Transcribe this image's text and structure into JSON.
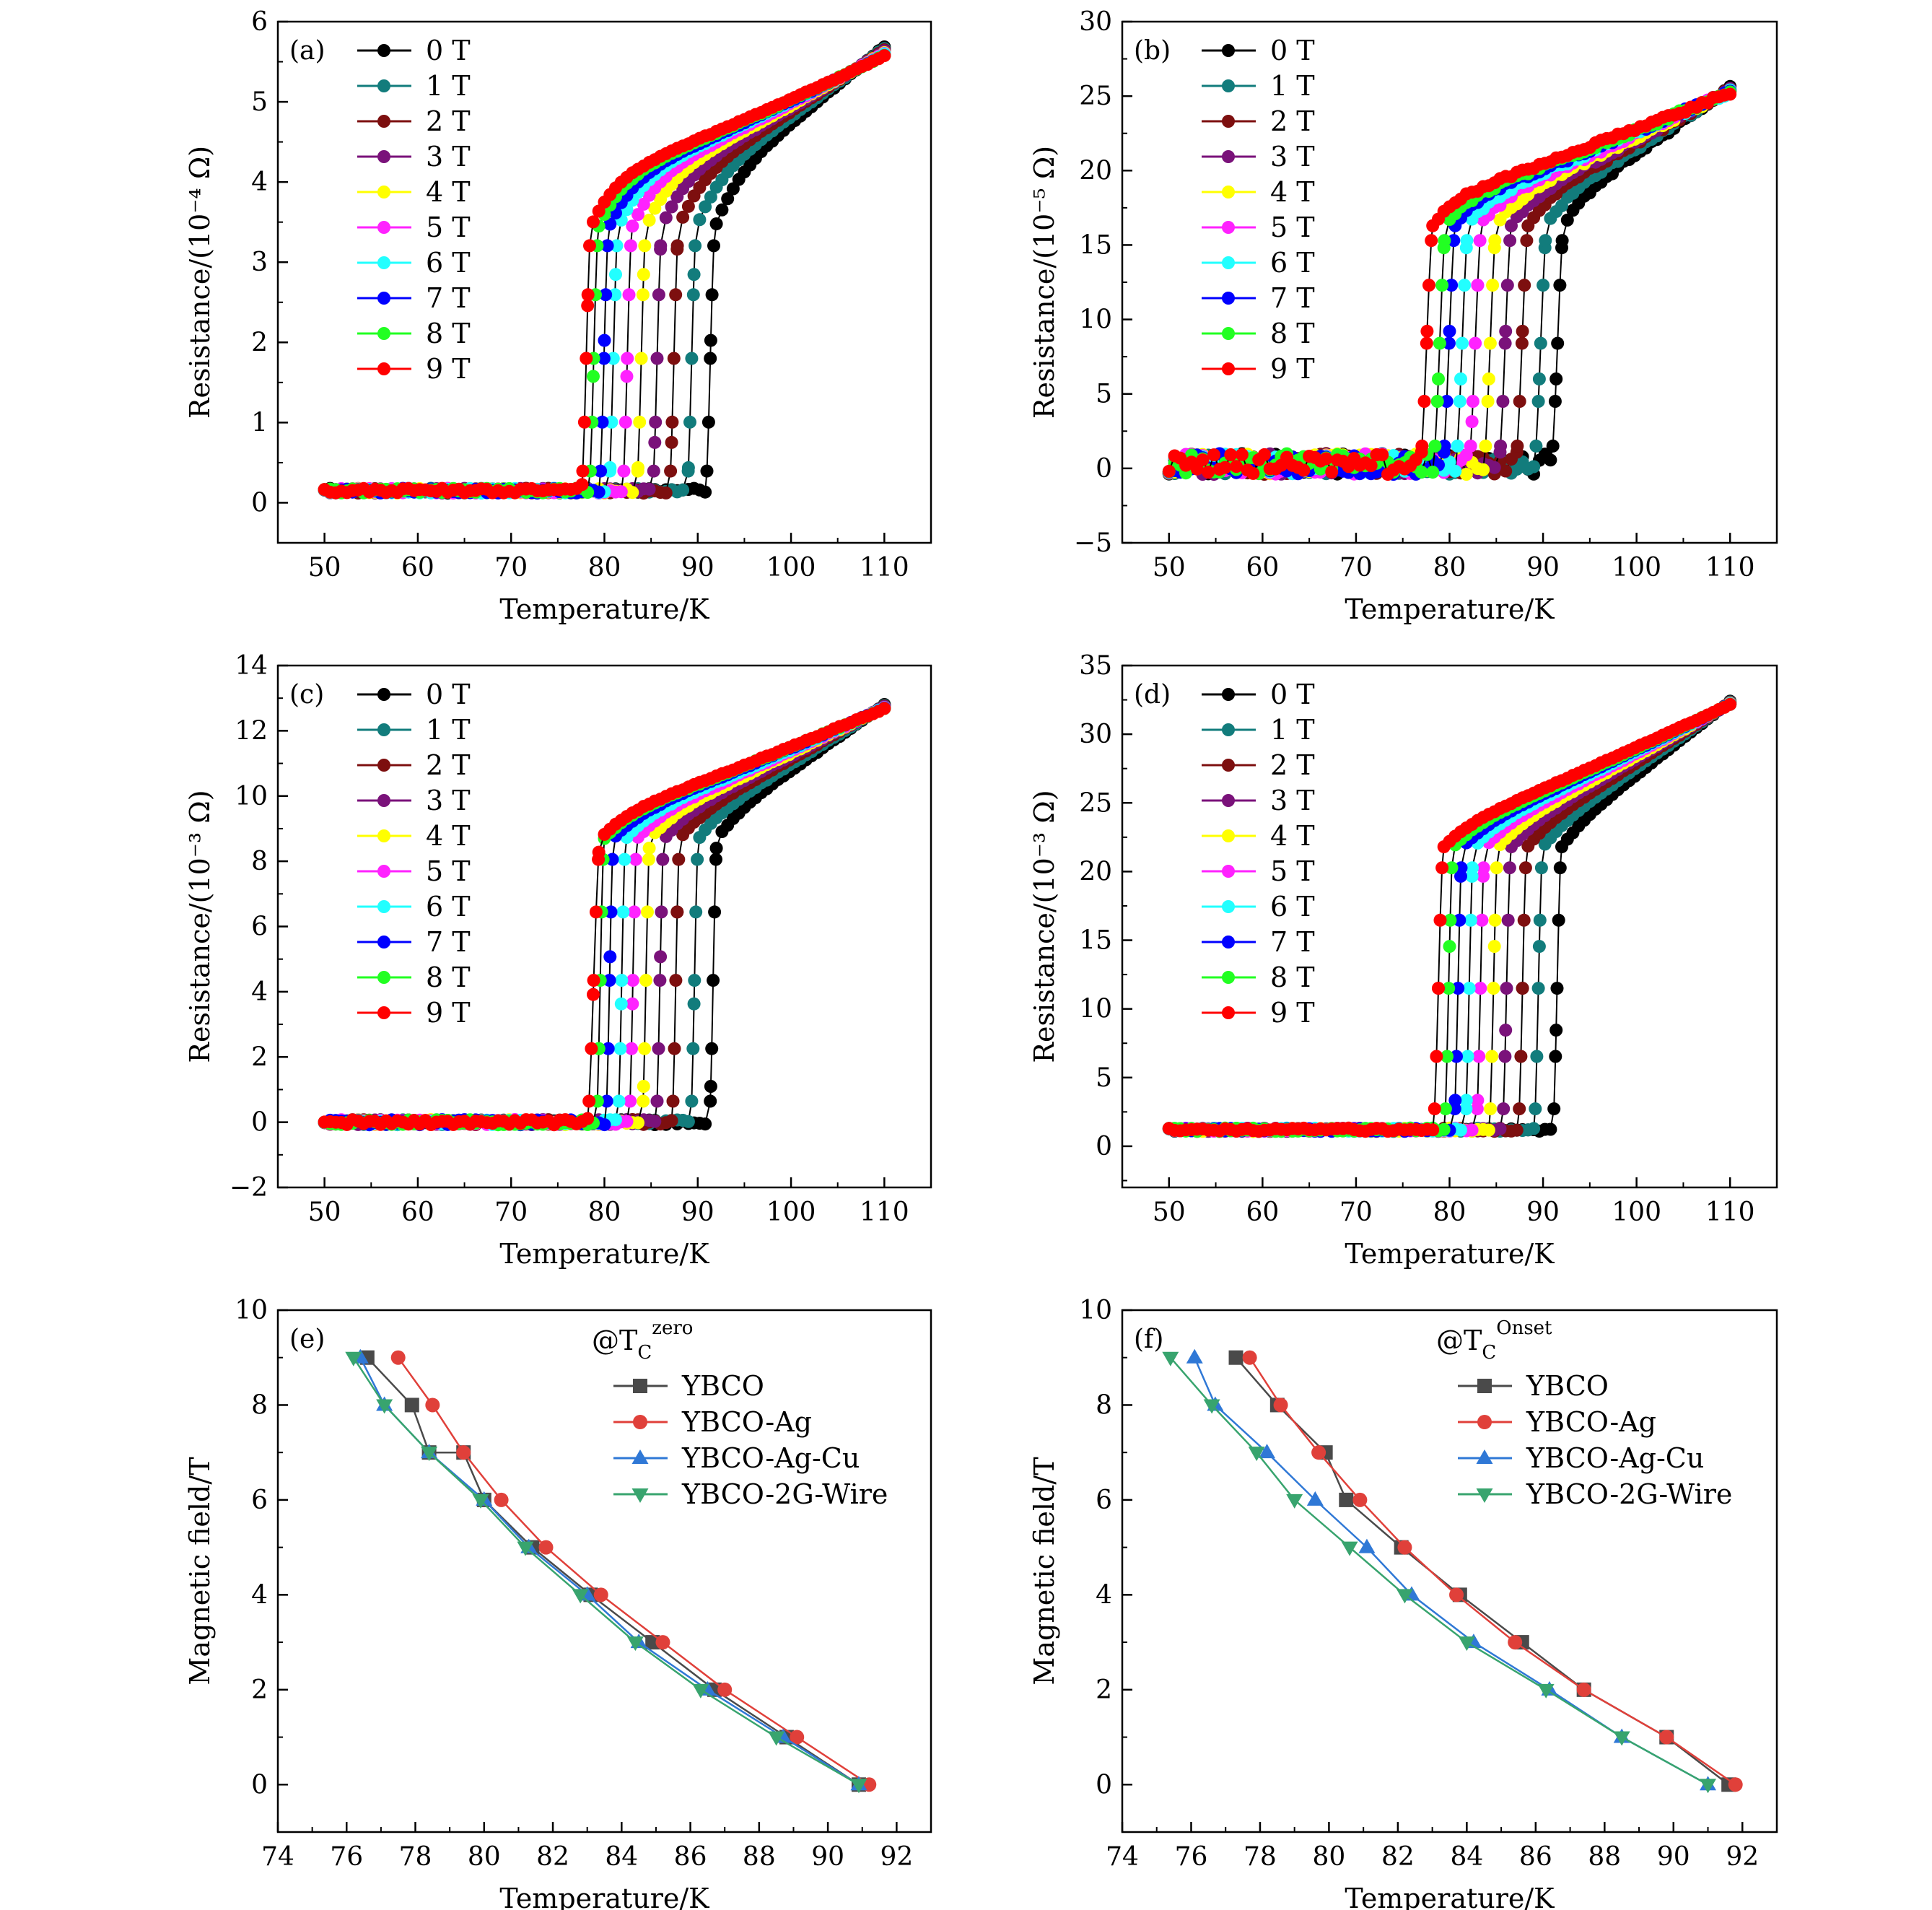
{
  "chart_data": [
    {
      "panel": "(a)",
      "type": "line",
      "xlabel": "Temperature/K",
      "ylabel": "Resistance/(10⁻⁴ Ω)",
      "xlim": [
        45,
        115
      ],
      "ylim": [
        -0.5,
        6
      ],
      "xticks": [
        50,
        60,
        70,
        80,
        90,
        100,
        110
      ],
      "yticks": [
        0,
        1,
        2,
        3,
        4,
        5,
        6
      ],
      "legend": "top-left",
      "grid": false,
      "model": {
        "T_min": 50,
        "T_max": 110,
        "step": 0.6,
        "base": 0.15,
        "noise": 0.03,
        "R_onset": 3.45,
        "R_end": 5.4,
        "bend": 0.6,
        "width": 0.5
      },
      "series": [
        {
          "name": "0 T",
          "color": "#000000",
          "Tc_zero": 90.8,
          "Tc_onset": 91.9
        },
        {
          "name": "1 T",
          "color": "#127c7c",
          "Tc_zero": 88.8,
          "Tc_onset": 89.9
        },
        {
          "name": "2 T",
          "color": "#7d0f0f",
          "Tc_zero": 86.9,
          "Tc_onset": 88.0
        },
        {
          "name": "3 T",
          "color": "#7a127a",
          "Tc_zero": 85.1,
          "Tc_onset": 86.2
        },
        {
          "name": "4 T",
          "color": "#ffff00",
          "Tc_zero": 83.4,
          "Tc_onset": 84.5
        },
        {
          "name": "5 T",
          "color": "#ff22ff",
          "Tc_zero": 81.9,
          "Tc_onset": 83.0
        },
        {
          "name": "6 T",
          "color": "#22ffff",
          "Tc_zero": 80.4,
          "Tc_onset": 81.5
        },
        {
          "name": "7 T",
          "color": "#0000ff",
          "Tc_zero": 79.4,
          "Tc_onset": 80.5
        },
        {
          "name": "8 T",
          "color": "#22ff22",
          "Tc_zero": 78.3,
          "Tc_onset": 79.4
        },
        {
          "name": "9 T",
          "color": "#ff0000",
          "Tc_zero": 77.5,
          "Tc_onset": 78.6
        }
      ]
    },
    {
      "panel": "(b)",
      "type": "line",
      "xlabel": "Temperature/K",
      "ylabel": "Resistance/(10⁻⁵ Ω)",
      "xlim": [
        45,
        115
      ],
      "ylim": [
        -5,
        30
      ],
      "xticks": [
        50,
        60,
        70,
        80,
        90,
        100,
        110
      ],
      "yticks": [
        -5,
        0,
        5,
        10,
        15,
        20,
        25,
        30
      ],
      "legend": "top-left",
      "grid": false,
      "model": {
        "T_min": 50,
        "T_max": 110,
        "step": 0.6,
        "base": 0.3,
        "noise": 0.7,
        "R_onset": 16.5,
        "R_end": 24.8,
        "bend": 1.5,
        "width": 0.6
      },
      "series": [
        {
          "name": "0 T",
          "color": "#000000",
          "Tc_zero": 90.8,
          "Tc_onset": 92.3
        },
        {
          "name": "1 T",
          "color": "#127c7c",
          "Tc_zero": 89.0,
          "Tc_onset": 90.5
        },
        {
          "name": "2 T",
          "color": "#7d0f0f",
          "Tc_zero": 87.0,
          "Tc_onset": 88.5
        },
        {
          "name": "3 T",
          "color": "#7a127a",
          "Tc_zero": 85.2,
          "Tc_onset": 86.7
        },
        {
          "name": "4 T",
          "color": "#ffff00",
          "Tc_zero": 83.6,
          "Tc_onset": 85.1
        },
        {
          "name": "5 T",
          "color": "#ff22ff",
          "Tc_zero": 82.0,
          "Tc_onset": 83.5
        },
        {
          "name": "6 T",
          "color": "#22ffff",
          "Tc_zero": 80.6,
          "Tc_onset": 82.1
        },
        {
          "name": "7 T",
          "color": "#0000ff",
          "Tc_zero": 79.2,
          "Tc_onset": 80.7
        },
        {
          "name": "8 T",
          "color": "#22ff22",
          "Tc_zero": 78.2,
          "Tc_onset": 79.7
        },
        {
          "name": "9 T",
          "color": "#ff0000",
          "Tc_zero": 76.8,
          "Tc_onset": 78.3
        }
      ]
    },
    {
      "panel": "(c)",
      "type": "line",
      "xlabel": "Temperature/K",
      "ylabel": "Resistance/(10⁻³ Ω)",
      "xlim": [
        45,
        115
      ],
      "ylim": [
        -2,
        14
      ],
      "xticks": [
        50,
        60,
        70,
        80,
        90,
        100,
        110
      ],
      "yticks": [
        -2,
        0,
        2,
        4,
        6,
        8,
        10,
        12,
        14
      ],
      "legend": "top-left",
      "grid": false,
      "model": {
        "T_min": 50,
        "T_max": 110,
        "step": 0.6,
        "base": 0.0,
        "noise": 0.08,
        "R_onset": 8.7,
        "R_end": 12.5,
        "bend": 0.6,
        "width": 0.4
      },
      "series": [
        {
          "name": "0 T",
          "color": "#000000",
          "Tc_zero": 91.2,
          "Tc_onset": 92.1
        },
        {
          "name": "1 T",
          "color": "#127c7c",
          "Tc_zero": 89.2,
          "Tc_onset": 90.1
        },
        {
          "name": "2 T",
          "color": "#7d0f0f",
          "Tc_zero": 87.2,
          "Tc_onset": 88.1
        },
        {
          "name": "3 T",
          "color": "#7a127a",
          "Tc_zero": 85.5,
          "Tc_onset": 86.4
        },
        {
          "name": "4 T",
          "color": "#ffff00",
          "Tc_zero": 84.0,
          "Tc_onset": 84.9
        },
        {
          "name": "5 T",
          "color": "#ff22ff",
          "Tc_zero": 82.6,
          "Tc_onset": 83.5
        },
        {
          "name": "6 T",
          "color": "#22ffff",
          "Tc_zero": 81.4,
          "Tc_onset": 82.3
        },
        {
          "name": "7 T",
          "color": "#0000ff",
          "Tc_zero": 80.1,
          "Tc_onset": 81.0
        },
        {
          "name": "8 T",
          "color": "#22ff22",
          "Tc_zero": 79.1,
          "Tc_onset": 80.0
        },
        {
          "name": "9 T",
          "color": "#ff0000",
          "Tc_zero": 78.1,
          "Tc_onset": 79.6
        }
      ]
    },
    {
      "panel": "(d)",
      "type": "line",
      "xlabel": "Temperature/K",
      "ylabel": "Resistance/(10⁻³ Ω)",
      "xlim": [
        45,
        115
      ],
      "ylim": [
        -3,
        35
      ],
      "xticks": [
        50,
        60,
        70,
        80,
        90,
        100,
        110
      ],
      "yticks": [
        0,
        5,
        10,
        15,
        20,
        25,
        30,
        35
      ],
      "legend": "top-left",
      "grid": false,
      "model": {
        "T_min": 50,
        "T_max": 110,
        "step": 0.6,
        "base": 1.2,
        "noise": 0.12,
        "R_onset": 21.8,
        "R_end": 31.8,
        "bend": 1.2,
        "width": 0.4
      },
      "series": [
        {
          "name": "0 T",
          "color": "#000000",
          "Tc_zero": 91.0,
          "Tc_onset": 92.0
        },
        {
          "name": "1 T",
          "color": "#127c7c",
          "Tc_zero": 89.0,
          "Tc_onset": 90.0
        },
        {
          "name": "2 T",
          "color": "#7d0f0f",
          "Tc_zero": 87.3,
          "Tc_onset": 88.3
        },
        {
          "name": "3 T",
          "color": "#7a127a",
          "Tc_zero": 85.6,
          "Tc_onset": 86.6
        },
        {
          "name": "4 T",
          "color": "#ffff00",
          "Tc_zero": 84.2,
          "Tc_onset": 85.2
        },
        {
          "name": "5 T",
          "color": "#ff22ff",
          "Tc_zero": 82.8,
          "Tc_onset": 83.8
        },
        {
          "name": "6 T",
          "color": "#22ffff",
          "Tc_zero": 81.6,
          "Tc_onset": 82.6
        },
        {
          "name": "7 T",
          "color": "#0000ff",
          "Tc_zero": 80.4,
          "Tc_onset": 81.4
        },
        {
          "name": "8 T",
          "color": "#22ff22",
          "Tc_zero": 79.4,
          "Tc_onset": 80.4
        },
        {
          "name": "9 T",
          "color": "#ff0000",
          "Tc_zero": 78.2,
          "Tc_onset": 79.4
        }
      ]
    },
    {
      "panel": "(e)",
      "type": "line",
      "annotation": {
        "prefix": "@T",
        "sub": "C",
        "sup": "zero"
      },
      "xlabel": "Temperature/K",
      "ylabel": "Magnetic field/T",
      "xlim": [
        74,
        93
      ],
      "ylim": [
        -1,
        10
      ],
      "xticks": [
        74,
        76,
        78,
        80,
        82,
        84,
        86,
        88,
        90,
        92
      ],
      "yticks": [
        0,
        2,
        4,
        6,
        8,
        10
      ],
      "legend": "top-right",
      "grid": false,
      "series": [
        {
          "name": "YBCO",
          "color": "#4a4a4a",
          "marker": "square",
          "x": [
            90.9,
            88.8,
            86.7,
            84.9,
            83.1,
            81.4,
            80.0,
            79.4,
            78.4,
            77.9,
            76.6
          ],
          "y": [
            0,
            1,
            2,
            3,
            4,
            5,
            6,
            7,
            7,
            8,
            9
          ]
        },
        {
          "name": "YBCO-Ag",
          "color": "#e0403a",
          "marker": "circle",
          "x": [
            91.2,
            89.1,
            87.0,
            85.2,
            83.4,
            81.8,
            80.5,
            79.4,
            78.5,
            77.5
          ],
          "y": [
            0,
            1,
            2,
            3,
            4,
            5,
            6,
            7,
            8,
            9
          ]
        },
        {
          "name": "YBCO-Ag-Cu",
          "color": "#2f78d6",
          "marker": "triangle-up",
          "x": [
            90.9,
            88.7,
            86.5,
            84.5,
            83.0,
            81.3,
            80.0,
            78.4,
            77.1,
            76.4
          ],
          "y": [
            0,
            1,
            2,
            3,
            4,
            5,
            6,
            7,
            8,
            9
          ]
        },
        {
          "name": "YBCO-2G-Wire",
          "color": "#38a46e",
          "marker": "triangle-down",
          "x": [
            90.9,
            88.5,
            86.3,
            84.4,
            82.8,
            81.2,
            79.9,
            78.4,
            77.1,
            76.2
          ],
          "y": [
            0,
            1,
            2,
            3,
            4,
            5,
            6,
            7,
            8,
            9
          ]
        }
      ]
    },
    {
      "panel": "(f)",
      "type": "line",
      "annotation": {
        "prefix": "@T",
        "sub": "C",
        "sup": "Onset"
      },
      "xlabel": "Temperature/K",
      "ylabel": "Magnetic field/T",
      "xlim": [
        74,
        93
      ],
      "ylim": [
        -1,
        10
      ],
      "xticks": [
        74,
        76,
        78,
        80,
        82,
        84,
        86,
        88,
        90,
        92
      ],
      "yticks": [
        0,
        2,
        4,
        6,
        8,
        10
      ],
      "legend": "top-right",
      "grid": false,
      "series": [
        {
          "name": "YBCO",
          "color": "#4a4a4a",
          "marker": "square",
          "x": [
            91.6,
            89.8,
            87.4,
            85.6,
            83.8,
            82.1,
            80.5,
            79.9,
            78.5,
            77.3
          ],
          "y": [
            0,
            1,
            2,
            3,
            4,
            5,
            6,
            7,
            8,
            9
          ]
        },
        {
          "name": "YBCO-Ag",
          "color": "#e0403a",
          "marker": "circle",
          "x": [
            91.8,
            89.8,
            87.4,
            85.4,
            83.7,
            82.2,
            80.9,
            79.7,
            78.6,
            77.7
          ],
          "y": [
            0,
            1,
            2,
            3,
            4,
            5,
            6,
            7,
            8,
            9
          ]
        },
        {
          "name": "YBCO-Ag-Cu",
          "color": "#2f78d6",
          "marker": "triangle-up",
          "x": [
            91.0,
            88.5,
            86.4,
            84.2,
            82.4,
            81.1,
            79.6,
            78.2,
            76.7,
            76.1
          ],
          "y": [
            0,
            1,
            2,
            3,
            4,
            5,
            6,
            7,
            8,
            9
          ]
        },
        {
          "name": "YBCO-2G-Wire",
          "color": "#38a46e",
          "marker": "triangle-down",
          "x": [
            91.0,
            88.5,
            86.3,
            84.0,
            82.2,
            80.6,
            79.0,
            77.9,
            76.6,
            75.4
          ],
          "y": [
            0,
            1,
            2,
            3,
            4,
            5,
            6,
            7,
            8,
            9
          ]
        }
      ]
    }
  ]
}
